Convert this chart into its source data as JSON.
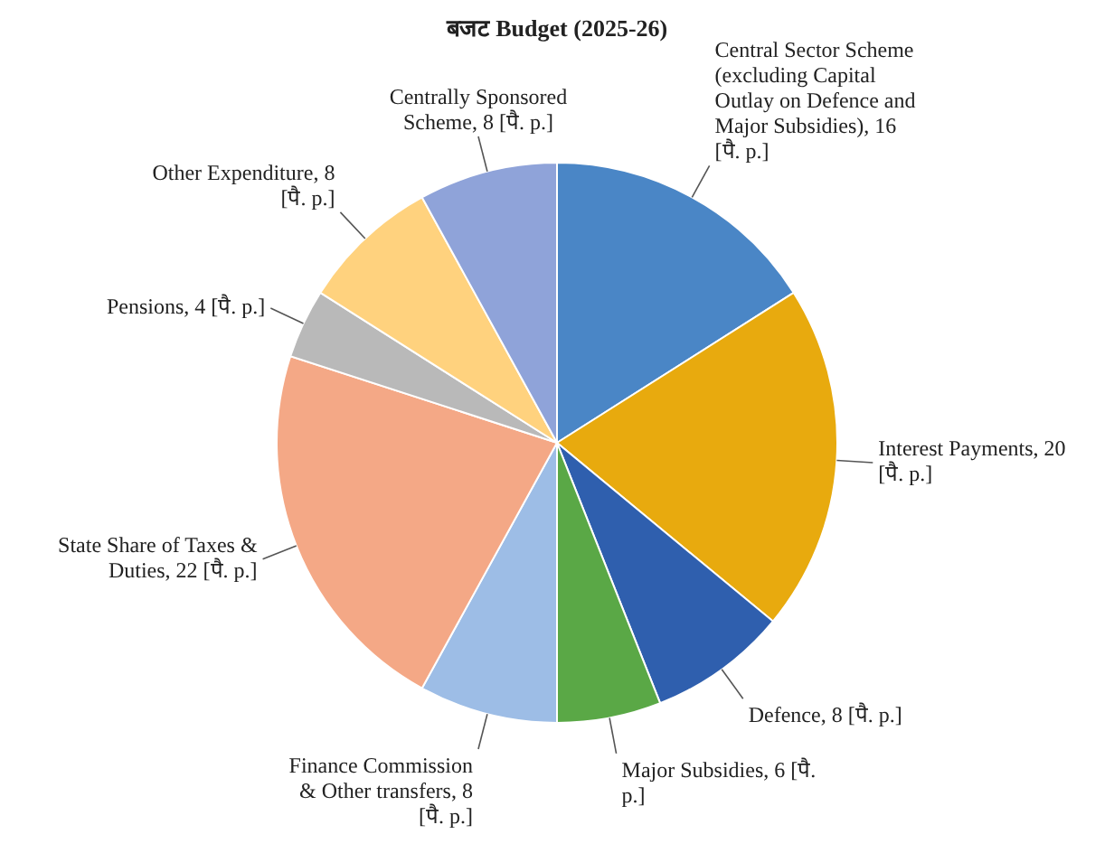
{
  "chart_data": {
    "type": "pie",
    "title": "बजट Budget (2025-26)",
    "categories": [
      "Central Sector Scheme (excluding Capital Outlay on Defence and Major Subsidies)",
      "Interest Payments",
      "Defence",
      "Major Subsidies",
      "Finance Commission & Other transfers",
      "State Share of Taxes & Duties",
      "Pensions",
      "Other Expenditure",
      "Centrally Sponsored Scheme"
    ],
    "values": [
      16,
      20,
      8,
      6,
      8,
      22,
      4,
      8,
      8
    ],
    "value_labels": [
      "16 [पै. p.]",
      "20 [पै. p.]",
      "8 [पै. p.]",
      "6 [पै. p.]",
      "8 [पै. p.]",
      "22 [पै. p.]",
      "4 [पै. p.]",
      "8 [पै. p.]",
      "8 [पै. p.]"
    ],
    "colors": [
      "#4a86c6",
      "#e8aa0e",
      "#2f5fae",
      "#5aa846",
      "#9dbde6",
      "#f4a886",
      "#b9b9b9",
      "#ffd27e",
      "#8fa3d9"
    ]
  }
}
